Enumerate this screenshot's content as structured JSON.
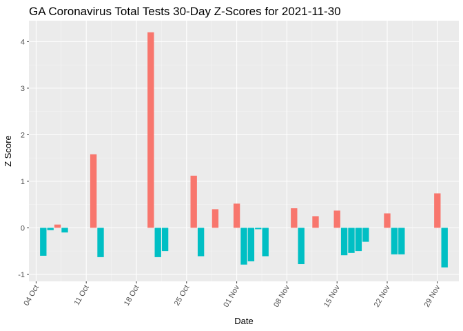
{
  "chart_data": {
    "type": "bar",
    "title": "GA Coronavirus Total Tests 30-Day Z-Scores for 2021-11-30",
    "xlabel": "Date",
    "ylabel": "Z Score",
    "ylim": [
      -1.15,
      4.45
    ],
    "yticks": [
      -1,
      0,
      1,
      2,
      3,
      4
    ],
    "xlim": [
      "2021-10-03",
      "2021-12-02"
    ],
    "xticks": [
      {
        "date": "2021-10-04",
        "label": "04 Oct"
      },
      {
        "date": "2021-10-11",
        "label": "11 Oct"
      },
      {
        "date": "2021-10-18",
        "label": "18 Oct"
      },
      {
        "date": "2021-10-25",
        "label": "25 Oct"
      },
      {
        "date": "2021-11-01",
        "label": "01 Nov"
      },
      {
        "date": "2021-11-08",
        "label": "08 Nov"
      },
      {
        "date": "2021-11-15",
        "label": "15 Nov"
      },
      {
        "date": "2021-11-22",
        "label": "22 Nov"
      },
      {
        "date": "2021-11-29",
        "label": "29 Nov"
      }
    ],
    "grid": true,
    "legend": "none",
    "colors": {
      "positive": "#f8766d",
      "negative": "#00bfc4"
    },
    "x": [
      "2021-10-05",
      "2021-10-06",
      "2021-10-07",
      "2021-10-08",
      "2021-10-12",
      "2021-10-13",
      "2021-10-20",
      "2021-10-21",
      "2021-10-22",
      "2021-10-26",
      "2021-10-27",
      "2021-10-29",
      "2021-11-01",
      "2021-11-02",
      "2021-11-03",
      "2021-11-04",
      "2021-11-05",
      "2021-11-09",
      "2021-11-10",
      "2021-11-12",
      "2021-11-15",
      "2021-11-16",
      "2021-11-17",
      "2021-11-18",
      "2021-11-19",
      "2021-11-22",
      "2021-11-23",
      "2021-11-24",
      "2021-11-29",
      "2021-11-30"
    ],
    "values": [
      -0.6,
      -0.05,
      0.07,
      -0.1,
      1.58,
      -0.63,
      4.2,
      -0.63,
      -0.5,
      1.12,
      -0.61,
      0.4,
      0.52,
      -0.79,
      -0.72,
      -0.03,
      -0.61,
      0.42,
      -0.78,
      0.25,
      0.37,
      -0.59,
      -0.54,
      -0.5,
      -0.3,
      0.31,
      -0.57,
      -0.57,
      0.74,
      -0.85
    ]
  }
}
